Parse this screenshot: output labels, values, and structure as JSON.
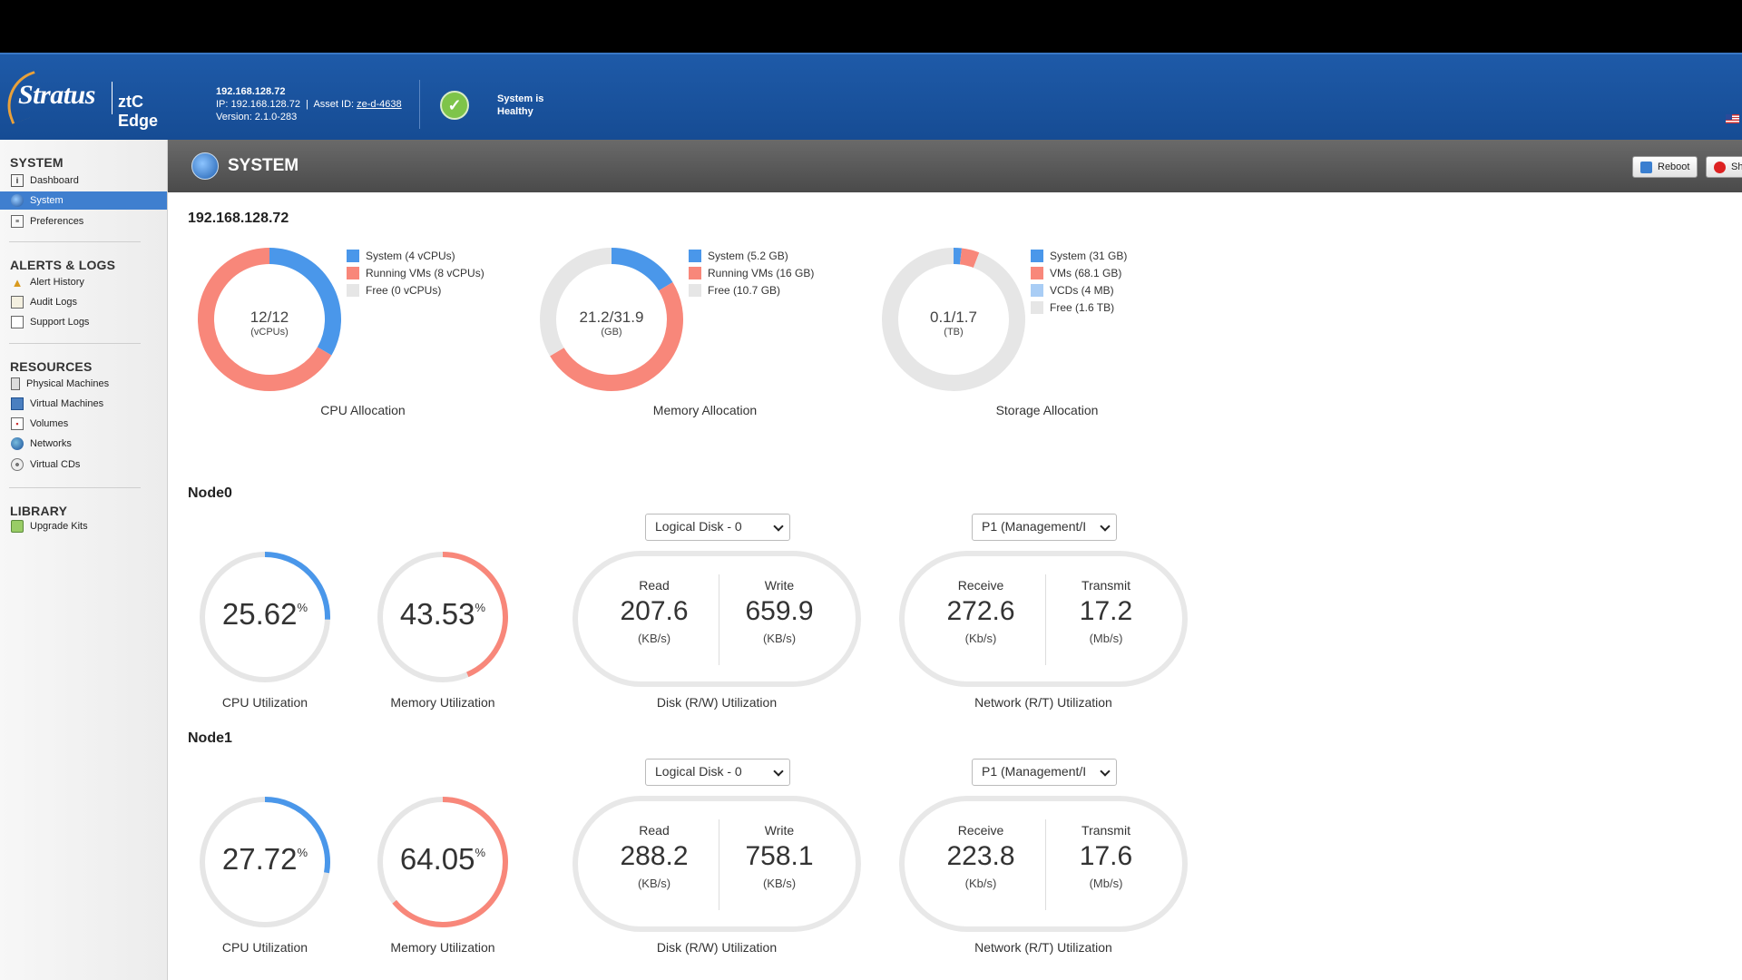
{
  "header": {
    "brand": "Stratus",
    "product": "ztC Edge",
    "system_name": "192.168.128.72",
    "ip_prefix": "IP: 192.168.128.72  |  Asset ID: ",
    "asset_id": "ze-d-4638",
    "version": "Version: 2.1.0-283",
    "health_text": "System is Healthy"
  },
  "sidebar": {
    "sections": [
      {
        "title": "SYSTEM",
        "items": [
          "Dashboard",
          "System",
          "Preferences"
        ]
      },
      {
        "title": "ALERTS & LOGS",
        "items": [
          "Alert History",
          "Audit Logs",
          "Support Logs"
        ]
      },
      {
        "title": "RESOURCES",
        "items": [
          "Physical Machines",
          "Virtual Machines",
          "Volumes",
          "Networks",
          "Virtual CDs"
        ]
      },
      {
        "title": "LIBRARY",
        "items": [
          "Upgrade Kits"
        ]
      }
    ],
    "active": "System"
  },
  "page": {
    "title": "SYSTEM",
    "buttons": {
      "reboot": "Reboot",
      "shutdown": "Shu"
    }
  },
  "allocation": {
    "title": "192.168.128.72",
    "cpu": {
      "caption": "CPU Allocation",
      "center": "12/12",
      "unit": "(vCPUs)",
      "legend": [
        "System (4 vCPUs)",
        "Running VMs (8 vCPUs)",
        "Free (0 vCPUs)"
      ],
      "values": [
        4,
        8,
        0
      ],
      "colors": [
        "#4a97ea",
        "#f8877a",
        "#e6e6e6"
      ]
    },
    "memory": {
      "caption": "Memory Allocation",
      "center": "21.2/31.9",
      "unit": "(GB)",
      "legend": [
        "System (5.2 GB)",
        "Running VMs (16 GB)",
        "Free (10.7 GB)"
      ],
      "values": [
        5.2,
        16,
        10.7
      ],
      "colors": [
        "#4a97ea",
        "#f8877a",
        "#e6e6e6"
      ]
    },
    "storage": {
      "caption": "Storage Allocation",
      "center": "0.1/1.7",
      "unit": "(TB)",
      "legend": [
        "System (31 GB)",
        "VMs (68.1 GB)",
        "VCDs (4 MB)",
        "Free (1.6 TB)"
      ],
      "values": [
        31,
        68.1,
        0.004,
        1600
      ],
      "colors": [
        "#4a97ea",
        "#f8877a",
        "#a9cdf5",
        "#e6e6e6"
      ]
    }
  },
  "nodes": [
    {
      "name": "Node0",
      "cpu": {
        "value": "25.62",
        "fraction": 0.2562,
        "caption": "CPU Utilization"
      },
      "memory": {
        "value": "43.53",
        "fraction": 0.4353,
        "caption": "Memory Utilization"
      },
      "disk": {
        "select": "Logical Disk - 0",
        "read_label": "Read",
        "read": "207.6",
        "read_unit": "(KB/s)",
        "write_label": "Write",
        "write": "659.9",
        "write_unit": "(KB/s)",
        "caption": "Disk (R/W) Utilization"
      },
      "network": {
        "select": "P1 (Management/I",
        "rx_label": "Receive",
        "rx": "272.6",
        "rx_unit": "(Kb/s)",
        "tx_label": "Transmit",
        "tx": "17.2",
        "tx_unit": "(Mb/s)",
        "caption": "Network (R/T) Utilization"
      }
    },
    {
      "name": "Node1",
      "cpu": {
        "value": "27.72",
        "fraction": 0.2772,
        "caption": "CPU Utilization"
      },
      "memory": {
        "value": "64.05",
        "fraction": 0.6405,
        "caption": "Memory Utilization"
      },
      "disk": {
        "select": "Logical Disk - 0",
        "read_label": "Read",
        "read": "288.2",
        "read_unit": "(KB/s)",
        "write_label": "Write",
        "write": "758.1",
        "write_unit": "(KB/s)",
        "caption": "Disk (R/W) Utilization"
      },
      "network": {
        "select": "P1 (Management/I",
        "rx_label": "Receive",
        "rx": "223.8",
        "rx_unit": "(Kb/s)",
        "tx_label": "Transmit",
        "tx": "17.6",
        "tx_unit": "(Mb/s)",
        "caption": "Network (R/T) Utilization"
      }
    }
  ],
  "percent_sign": "%",
  "colors": {
    "accent_blue": "#4a97ea",
    "accent_red": "#f8877a",
    "track": "#e6e6e6",
    "header_blue": "#1e5aa8"
  }
}
